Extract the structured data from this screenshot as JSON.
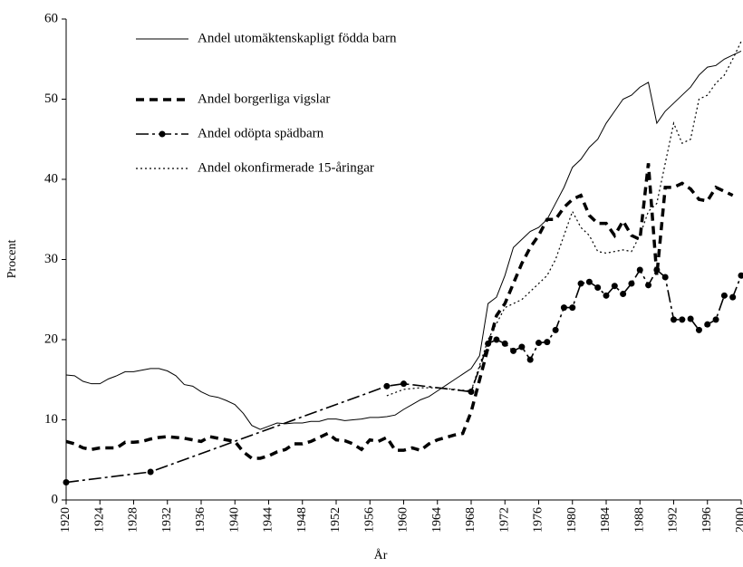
{
  "chart_data": {
    "type": "line",
    "xlabel": "År",
    "ylabel": "Procent",
    "xlim": [
      1920,
      2000
    ],
    "ylim": [
      0,
      60
    ],
    "xticks": [
      1920,
      1924,
      1928,
      1932,
      1936,
      1940,
      1944,
      1948,
      1952,
      1956,
      1960,
      1964,
      1968,
      1972,
      1976,
      1980,
      1984,
      1988,
      1992,
      1996,
      2000
    ],
    "yticks": [
      0,
      10,
      20,
      30,
      40,
      50,
      60
    ],
    "legend": "top-left",
    "series": [
      {
        "name": "Andel utomäktenskapligt födda barn",
        "color": "#000000",
        "line_style": "solid",
        "x": [
          1920,
          1921,
          1922,
          1923,
          1924,
          1925,
          1926,
          1927,
          1928,
          1929,
          1930,
          1931,
          1932,
          1933,
          1934,
          1935,
          1936,
          1937,
          1938,
          1939,
          1940,
          1941,
          1942,
          1943,
          1944,
          1945,
          1946,
          1947,
          1948,
          1949,
          1950,
          1951,
          1952,
          1953,
          1954,
          1955,
          1956,
          1957,
          1958,
          1959,
          1960,
          1961,
          1962,
          1963,
          1964,
          1965,
          1966,
          1967,
          1968,
          1969,
          1970,
          1971,
          1972,
          1973,
          1974,
          1975,
          1976,
          1977,
          1978,
          1979,
          1980,
          1981,
          1982,
          1983,
          1984,
          1985,
          1986,
          1987,
          1988,
          1989,
          1990,
          1991,
          1992,
          1993,
          1994,
          1995,
          1996,
          1997,
          1998,
          1999,
          2000
        ],
        "values": [
          15.6,
          15.5,
          14.8,
          14.5,
          14.5,
          15.1,
          15.5,
          16.0,
          16.0,
          16.2,
          16.4,
          16.4,
          16.1,
          15.5,
          14.4,
          14.2,
          13.5,
          13.0,
          12.8,
          12.4,
          11.9,
          10.8,
          9.3,
          8.8,
          9.2,
          9.6,
          9.5,
          9.6,
          9.6,
          9.8,
          9.8,
          10.1,
          10.1,
          9.9,
          10.0,
          10.1,
          10.3,
          10.3,
          10.4,
          10.6,
          11.3,
          11.9,
          12.5,
          12.9,
          13.6,
          14.3,
          15.0,
          15.7,
          16.4,
          18.0,
          24.5,
          25.3,
          28.0,
          31.5,
          32.5,
          33.5,
          34.0,
          35.0,
          37.0,
          39.0,
          41.5,
          42.5,
          44.0,
          45.0,
          47.0,
          48.5,
          50.0,
          50.5,
          51.5,
          52.1,
          47.0,
          48.5,
          49.5,
          50.5,
          51.5,
          53.0,
          54.0,
          54.2,
          55.0,
          55.5,
          56.0
        ]
      },
      {
        "name": "Andel borgerliga vigslar",
        "color": "#000000",
        "line_style": "dashed",
        "x": [
          1920,
          1921,
          1922,
          1923,
          1924,
          1925,
          1926,
          1927,
          1928,
          1929,
          1930,
          1931,
          1932,
          1933,
          1934,
          1935,
          1936,
          1937,
          1938,
          1939,
          1940,
          1941,
          1942,
          1943,
          1944,
          1945,
          1946,
          1947,
          1948,
          1949,
          1950,
          1951,
          1952,
          1953,
          1954,
          1955,
          1956,
          1957,
          1958,
          1959,
          1960,
          1961,
          1962,
          1963,
          1964,
          1965,
          1966,
          1967,
          1968,
          1969,
          1970,
          1971,
          1972,
          1973,
          1974,
          1975,
          1976,
          1977,
          1978,
          1979,
          1980,
          1981,
          1982,
          1983,
          1984,
          1985,
          1986,
          1987,
          1988,
          1989,
          1990,
          1991,
          1992,
          1993,
          1994,
          1995,
          1996,
          1997,
          1998,
          1999
        ],
        "values": [
          7.3,
          7.0,
          6.5,
          6.3,
          6.5,
          6.5,
          6.5,
          7.2,
          7.2,
          7.3,
          7.6,
          7.8,
          7.9,
          7.8,
          7.7,
          7.5,
          7.3,
          7.9,
          7.7,
          7.5,
          7.3,
          6.0,
          5.2,
          5.2,
          5.5,
          6.0,
          6.3,
          7.0,
          7.0,
          7.3,
          7.8,
          8.3,
          7.5,
          7.4,
          7.0,
          6.3,
          7.5,
          7.3,
          7.8,
          6.2,
          6.2,
          6.5,
          6.2,
          7.0,
          7.5,
          7.8,
          8.1,
          8.3,
          11.0,
          15.0,
          19.0,
          23.0,
          24.5,
          27.0,
          29.5,
          31.5,
          33.0,
          35.0,
          35.0,
          36.5,
          37.5,
          38.0,
          35.5,
          34.5,
          34.5,
          33.0,
          34.8,
          33.0,
          32.5,
          42.0,
          28.0,
          39.0,
          39.0,
          39.5,
          38.8,
          37.5,
          37.3,
          39.0,
          38.5,
          38.0
        ]
      },
      {
        "name": "Andel odöpta spädbarn",
        "color": "#000000",
        "line_style": "dashdot",
        "marker": "circle",
        "x": [
          1920,
          1930,
          1958,
          1960,
          1968,
          1970,
          1971,
          1972,
          1973,
          1974,
          1975,
          1976,
          1977,
          1978,
          1979,
          1980,
          1981,
          1982,
          1983,
          1984,
          1985,
          1986,
          1987,
          1988,
          1989,
          1990,
          1991,
          1992,
          1993,
          1994,
          1995,
          1996,
          1997,
          1998,
          1999,
          2000
        ],
        "values": [
          2.2,
          3.5,
          14.2,
          14.5,
          13.5,
          19.5,
          20.0,
          19.5,
          18.6,
          19.1,
          17.5,
          19.6,
          19.7,
          21.2,
          24.0,
          24.0,
          27.0,
          27.2,
          26.5,
          25.5,
          26.7,
          25.7,
          27.0,
          28.7,
          26.8,
          28.7,
          27.8,
          22.5,
          22.5,
          22.6,
          21.2,
          21.9,
          22.5,
          25.5,
          25.3,
          28.0
        ]
      },
      {
        "name": "Andel okonfirmerade 15-åringar",
        "color": "#000000",
        "line_style": "dotted",
        "x": [
          1958,
          1960,
          1962,
          1964,
          1966,
          1968,
          1970,
          1972,
          1974,
          1976,
          1977,
          1978,
          1979,
          1980,
          1981,
          1982,
          1983,
          1984,
          1985,
          1986,
          1987,
          1988,
          1989,
          1990,
          1991,
          1992,
          1993,
          1994,
          1995,
          1996,
          1997,
          1998,
          1999,
          2000
        ],
        "values": [
          13.0,
          13.8,
          14.0,
          14.0,
          13.8,
          13.6,
          20.0,
          24.0,
          25.0,
          27.0,
          28.0,
          30.0,
          33.0,
          36.0,
          34.0,
          33.0,
          31.0,
          30.8,
          31.0,
          31.2,
          31.0,
          33.0,
          36.0,
          37.0,
          42.0,
          47.0,
          44.5,
          45.0,
          50.0,
          50.5,
          52.0,
          53.0,
          55.0,
          57.2
        ]
      }
    ]
  }
}
